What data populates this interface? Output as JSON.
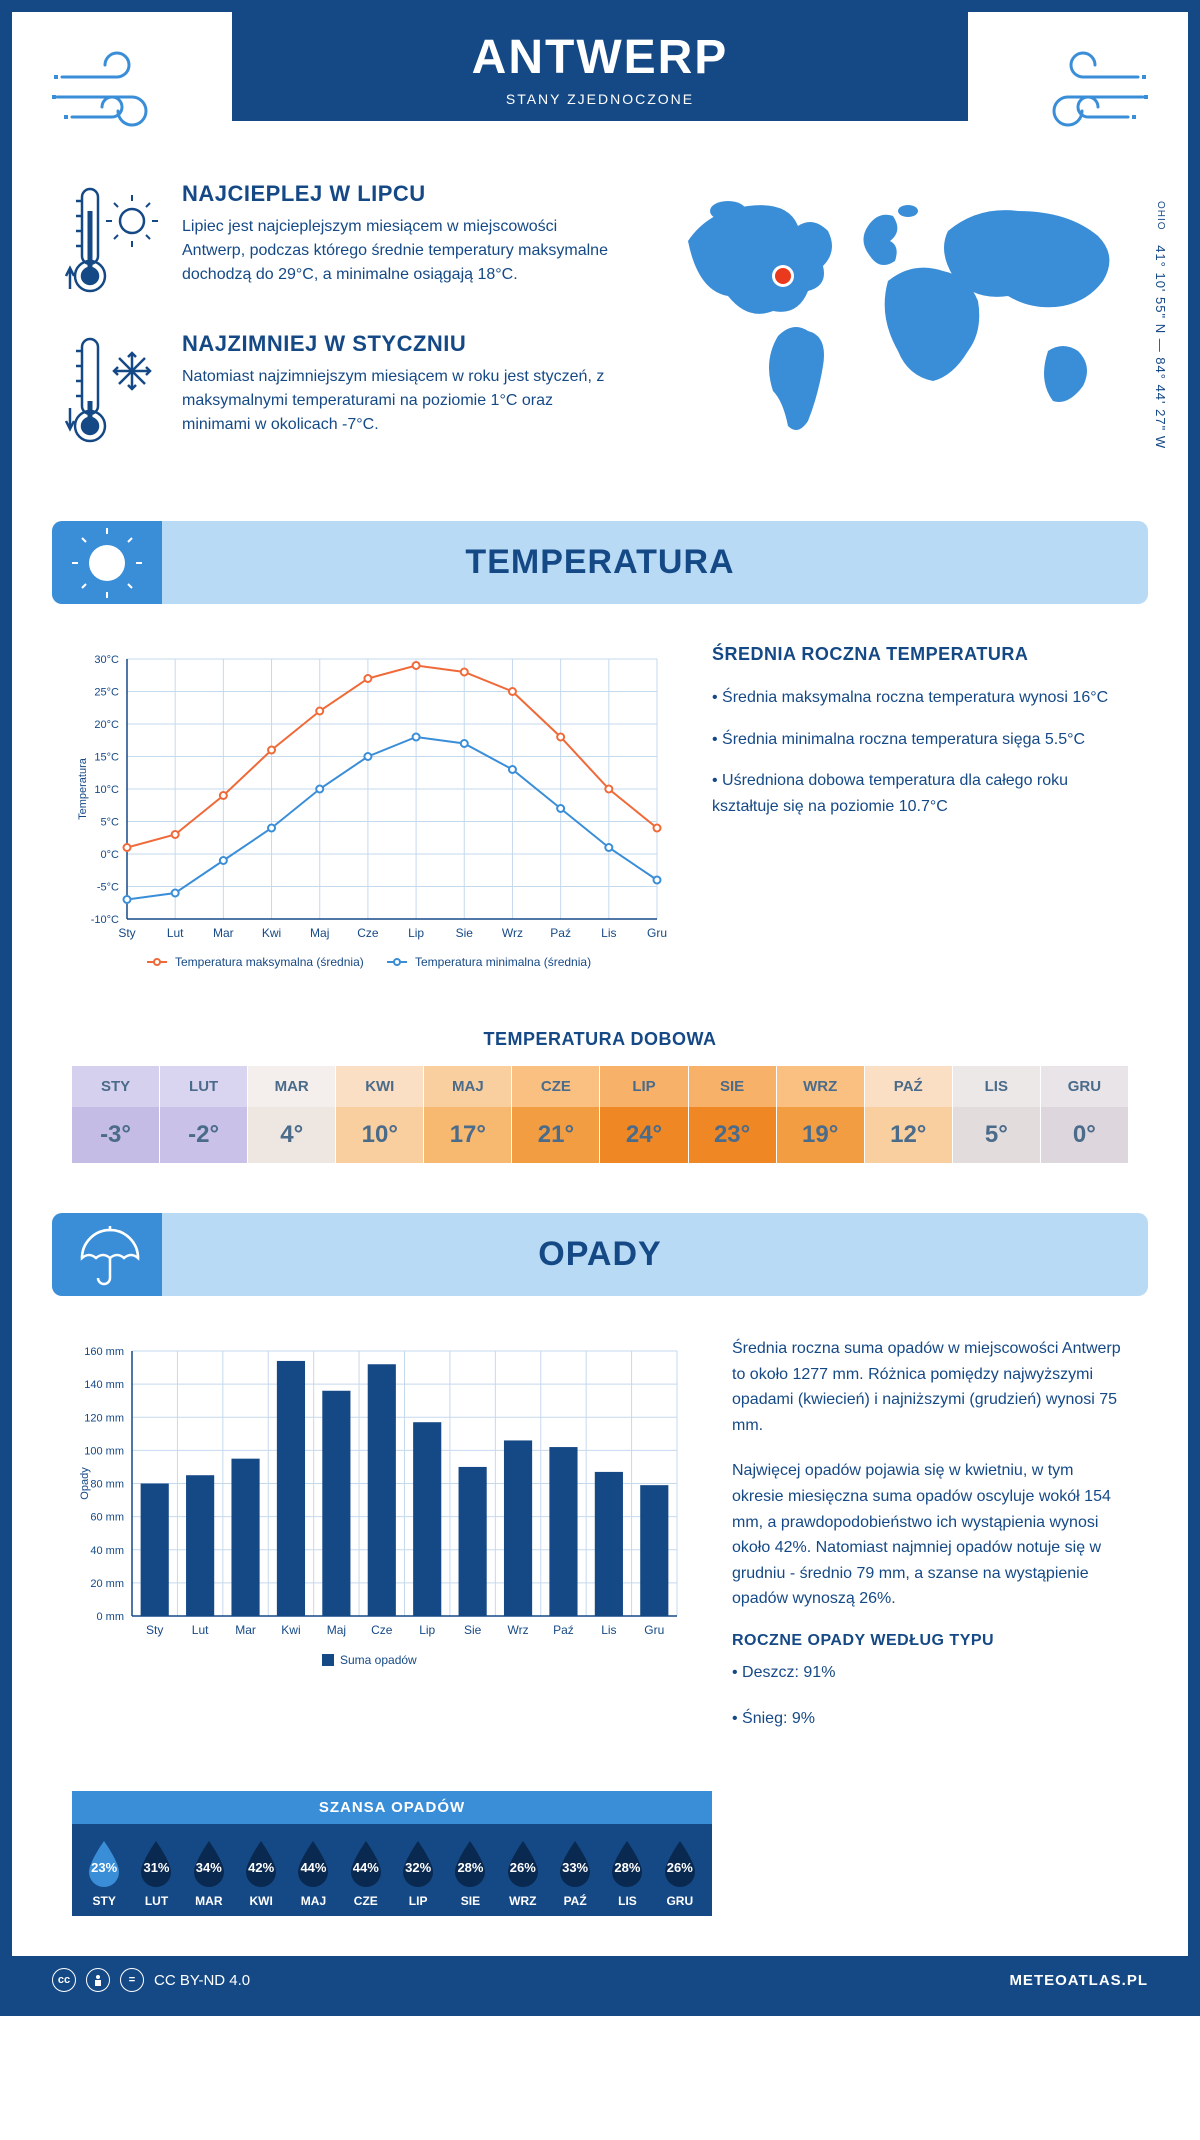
{
  "header": {
    "city": "ANTWERP",
    "country": "STANY ZJEDNOCZONE"
  },
  "intro": {
    "hot": {
      "title": "NAJCIEPLEJ W LIPCU",
      "text": "Lipiec jest najcieplejszym miesiącem w miejscowości Antwerp, podczas którego średnie temperatury maksymalne dochodzą do 29°C, a minimalne osiągają 18°C."
    },
    "cold": {
      "title": "NAJZIMNIEJ W STYCZNIU",
      "text": "Natomiast najzimniejszym miesiącem w roku jest styczeń, z maksymalnymi temperaturami na poziomie 1°C oraz minimami w okolicach -7°C."
    },
    "region": "OHIO",
    "coords": "41° 10' 55\" N — 84° 44' 27\" W"
  },
  "temperature": {
    "section_title": "TEMPERATURA",
    "info_title": "ŚREDNIA ROCZNA TEMPERATURA",
    "info_1": "• Średnia maksymalna roczna temperatura wynosi 16°C",
    "info_2": "• Średnia minimalna roczna temperatura sięga 5.5°C",
    "info_3": "• Uśredniona dobowa temperatura dla całego roku kształtuje się na poziomie 10.7°C",
    "chart": {
      "type": "line",
      "months": [
        "Sty",
        "Lut",
        "Mar",
        "Kwi",
        "Maj",
        "Cze",
        "Lip",
        "Sie",
        "Wrz",
        "Paź",
        "Lis",
        "Gru"
      ],
      "max_values": [
        1,
        3,
        9,
        16,
        22,
        27,
        29,
        28,
        25,
        18,
        10,
        4
      ],
      "min_values": [
        -7,
        -6,
        -1,
        4,
        10,
        15,
        18,
        17,
        13,
        7,
        1,
        -4
      ],
      "max_color": "#ef6a38",
      "min_color": "#3a8ed8",
      "max_label": "Temperatura maksymalna (średnia)",
      "min_label": "Temperatura minimalna (średnia)",
      "ylabel": "Temperatura",
      "ylim": [
        -10,
        30
      ],
      "ytick_step": 5,
      "grid_color": "#c5d9ed",
      "axis_color": "#154986",
      "background": "#ffffff"
    },
    "daily": {
      "title": "TEMPERATURA DOBOWA",
      "months": [
        "STY",
        "LUT",
        "MAR",
        "KWI",
        "MAJ",
        "CZE",
        "LIP",
        "SIE",
        "WRZ",
        "PAŹ",
        "LIS",
        "GRU"
      ],
      "values": [
        "-3°",
        "-2°",
        "4°",
        "10°",
        "17°",
        "21°",
        "24°",
        "23°",
        "19°",
        "12°",
        "5°",
        "0°"
      ],
      "top_colors": [
        "#d5d0ed",
        "#d9d4f0",
        "#f4efec",
        "#fbdfc4",
        "#f9cf9f",
        "#f9c082",
        "#f7b168",
        "#f7b168",
        "#f9c082",
        "#fbdfc4",
        "#ece8e8",
        "#e8e4e8"
      ],
      "bot_colors": [
        "#c4bce4",
        "#c9c1e8",
        "#eee6e0",
        "#f9cf9f",
        "#f7b870",
        "#f39d42",
        "#ef8724",
        "#ef8724",
        "#f39d42",
        "#f9cf9f",
        "#e3dcdc",
        "#ddd6dd"
      ]
    }
  },
  "precipitation": {
    "section_title": "OPADY",
    "info_1": "Średnia roczna suma opadów w miejscowości Antwerp to około 1277 mm. Różnica pomiędzy najwyższymi opadami (kwiecień) i najniższymi (grudzień) wynosi 75 mm.",
    "info_2": "Najwięcej opadów pojawia się w kwietniu, w tym okresie miesięczna suma opadów oscyluje wokół 154 mm, a prawdopodobieństwo ich wystąpienia wynosi około 42%. Natomiast najmniej opadów notuje się w grudniu - średnio 79 mm, a szanse na wystąpienie opadów wynoszą 26%.",
    "chart": {
      "type": "bar",
      "months": [
        "Sty",
        "Lut",
        "Mar",
        "Kwi",
        "Maj",
        "Cze",
        "Lip",
        "Sie",
        "Wrz",
        "Paź",
        "Lis",
        "Gru"
      ],
      "values": [
        80,
        85,
        95,
        154,
        136,
        152,
        117,
        90,
        106,
        102,
        87,
        79
      ],
      "bar_color": "#154986",
      "ylabel": "Opady",
      "ylim": [
        0,
        160
      ],
      "ytick_step": 20,
      "grid_color": "#c5d9ed",
      "legend_label": "Suma opadów"
    },
    "chance": {
      "title": "SZANSA OPADÓW",
      "months": [
        "STY",
        "LUT",
        "MAR",
        "KWI",
        "MAJ",
        "CZE",
        "LIP",
        "SIE",
        "WRZ",
        "PAŹ",
        "LIS",
        "GRU"
      ],
      "values": [
        "23%",
        "31%",
        "34%",
        "42%",
        "44%",
        "44%",
        "32%",
        "28%",
        "26%",
        "33%",
        "28%",
        "26%"
      ],
      "drop_colors": [
        "#3a8ed8",
        "#092950",
        "#092950",
        "#092950",
        "#092950",
        "#092950",
        "#092950",
        "#092950",
        "#092950",
        "#092950",
        "#092950",
        "#092950"
      ]
    },
    "by_type": {
      "title": "ROCZNE OPADY WEDŁUG TYPU",
      "rain": "• Deszcz: 91%",
      "snow": "• Śnieg: 9%"
    }
  },
  "footer": {
    "license": "CC BY-ND 4.0",
    "site": "METEOATLAS.PL"
  },
  "colors": {
    "primary": "#154986",
    "secondary": "#3a8ed8",
    "light": "#b8daf4"
  }
}
